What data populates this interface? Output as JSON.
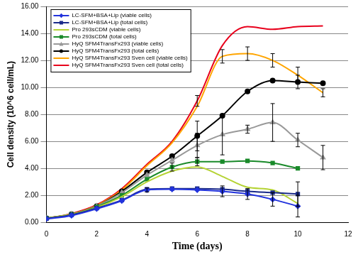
{
  "chart_data": {
    "type": "line",
    "x_label": "Time (days)",
    "y_label": "Cell density (10^6 cell/mL)",
    "x": [
      0,
      1,
      2,
      3,
      4,
      5,
      6,
      7,
      8,
      9,
      10,
      11
    ],
    "xlim": [
      0,
      12
    ],
    "xticks": [
      0,
      2,
      4,
      6,
      8,
      10,
      12
    ],
    "ylim": [
      0,
      16
    ],
    "yticks": [
      {
        "value": 0,
        "label": "0.00"
      },
      {
        "value": 2,
        "label": "2.00"
      },
      {
        "value": 4,
        "label": "4.00"
      },
      {
        "value": 6,
        "label": "6.00"
      },
      {
        "value": 8,
        "label": "8.00"
      },
      {
        "value": 10,
        "label": "10.00"
      },
      {
        "value": 12,
        "label": "12.00"
      },
      {
        "value": 14,
        "label": "14.00"
      },
      {
        "value": 16,
        "label": "16.00"
      }
    ],
    "grid": "y",
    "legend": "upper left",
    "series": [
      {
        "name": "LC-SFM+BSA+Lip (viable cells)",
        "color": "#2233dd",
        "marker": "diamond",
        "values": [
          0.25,
          0.5,
          1.0,
          1.6,
          2.4,
          2.45,
          2.4,
          2.3,
          2.1,
          1.7,
          1.2,
          null
        ],
        "errors": [
          null,
          null,
          null,
          null,
          0.15,
          null,
          null,
          0.4,
          0.4,
          0.5,
          0.8,
          null
        ]
      },
      {
        "name": "LC-SFM+BSA+Lip (total cells)",
        "color": "#1a2a8a",
        "marker": "square",
        "values": [
          0.28,
          0.55,
          1.05,
          1.65,
          2.45,
          2.5,
          2.5,
          2.45,
          2.3,
          2.2,
          2.1,
          null
        ],
        "errors": [
          null,
          null,
          null,
          null,
          null,
          null,
          null,
          null,
          null,
          null,
          0.9,
          null
        ]
      },
      {
        "name": "Pro 293sCDM (viable cells)",
        "color": "#b5d334",
        "marker": "none",
        "values": [
          0.3,
          0.6,
          1.1,
          1.9,
          3.0,
          3.8,
          4.1,
          3.4,
          2.6,
          2.4,
          1.4,
          null
        ],
        "errors": [
          null,
          null,
          null,
          null,
          null,
          null,
          null,
          null,
          null,
          null,
          null,
          null
        ]
      },
      {
        "name": "Pro 293sCDM (total cells)",
        "color": "#1a8a2a",
        "marker": "square",
        "values": [
          0.3,
          0.6,
          1.15,
          2.0,
          3.2,
          4.1,
          4.5,
          4.5,
          4.55,
          4.4,
          4.0,
          null
        ],
        "errors": [
          null,
          null,
          null,
          null,
          null,
          0.3,
          0.3,
          null,
          null,
          null,
          null,
          null
        ]
      },
      {
        "name": "HyQ SFM4TransFx293 (viable cells)",
        "color": "#999999",
        "marker": "triangle",
        "values": [
          0.3,
          0.6,
          1.2,
          2.2,
          3.5,
          4.6,
          5.7,
          6.5,
          6.9,
          7.4,
          6.1,
          4.8
        ],
        "errors": [
          null,
          null,
          null,
          null,
          null,
          null,
          0.9,
          1.5,
          0.3,
          1.4,
          0.5,
          0.9
        ]
      },
      {
        "name": "HyQ SFM4TransFx293 (total cells)",
        "color": "#000000",
        "marker": "circle",
        "values": [
          0.3,
          0.6,
          1.2,
          2.3,
          3.7,
          4.9,
          6.4,
          7.9,
          9.7,
          10.5,
          10.4,
          10.3
        ],
        "errors": [
          null,
          null,
          null,
          null,
          null,
          null,
          1.1,
          null,
          null,
          null,
          0.5,
          null
        ]
      },
      {
        "name": "HyQ SFM4TransFx293 Sven cell (viable cells)",
        "color": "#ffa500",
        "marker": "none",
        "values": [
          0.3,
          0.6,
          1.25,
          2.4,
          4.2,
          5.9,
          8.6,
          12.3,
          12.5,
          12.0,
          10.9,
          9.6
        ],
        "errors": [
          null,
          null,
          null,
          null,
          null,
          null,
          null,
          0.5,
          0.5,
          0.5,
          0.6,
          0.3
        ]
      },
      {
        "name": "HyQ SFM4TransFx293 Sven cell (total cells)",
        "color": "#e8001c",
        "marker": "none",
        "values": [
          0.3,
          0.65,
          1.3,
          2.5,
          4.3,
          6.0,
          9.0,
          13.1,
          14.5,
          14.3,
          14.5,
          14.55
        ],
        "errors": [
          null,
          null,
          null,
          null,
          null,
          null,
          0.4,
          null,
          null,
          null,
          null,
          null
        ]
      }
    ]
  }
}
